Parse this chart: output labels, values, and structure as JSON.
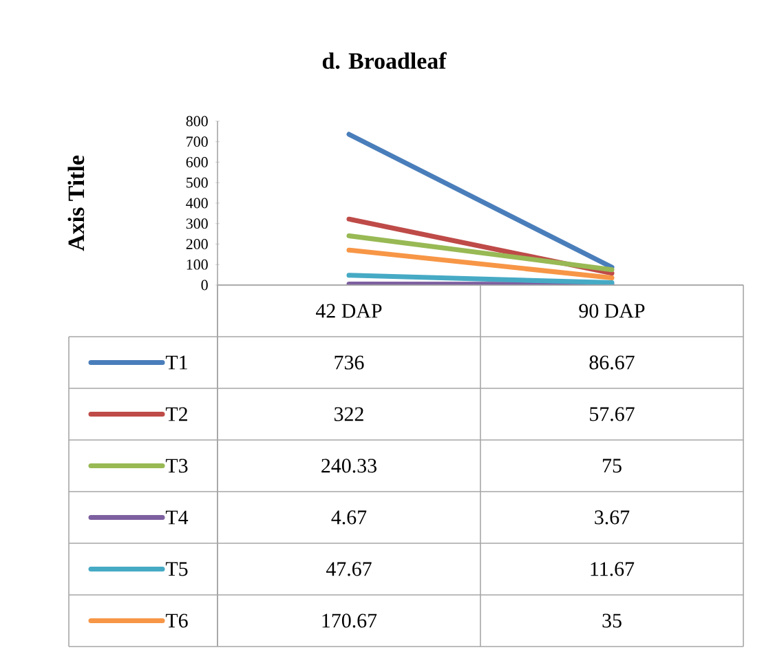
{
  "chart_data": {
    "type": "line",
    "title": "d. Broadleaf",
    "ylabel": "Axis Title",
    "categories": [
      "42 DAP",
      "90 DAP"
    ],
    "ylim": [
      0,
      800
    ],
    "yticks": [
      0,
      100,
      200,
      300,
      400,
      500,
      600,
      700,
      800
    ],
    "legend": "bottom",
    "series": [
      {
        "name": "T1",
        "color": "#4a7ebb",
        "values": [
          736,
          86.67
        ],
        "value_labels": [
          "736",
          "86.67"
        ]
      },
      {
        "name": "T2",
        "color": "#be4b48",
        "values": [
          322,
          57.67
        ],
        "value_labels": [
          "322",
          "57.67"
        ]
      },
      {
        "name": "T3",
        "color": "#98b954",
        "values": [
          240.33,
          75
        ],
        "value_labels": [
          "240.33",
          "75"
        ]
      },
      {
        "name": "T4",
        "color": "#7d60a0",
        "values": [
          4.67,
          3.67
        ],
        "value_labels": [
          "4.67",
          "3.67"
        ]
      },
      {
        "name": "T5",
        "color": "#46aac5",
        "values": [
          47.67,
          11.67
        ],
        "value_labels": [
          "47.67",
          "11.67"
        ]
      },
      {
        "name": "T6",
        "color": "#f79646",
        "values": [
          170.67,
          35
        ],
        "value_labels": [
          "170.67",
          "35"
        ]
      }
    ]
  }
}
